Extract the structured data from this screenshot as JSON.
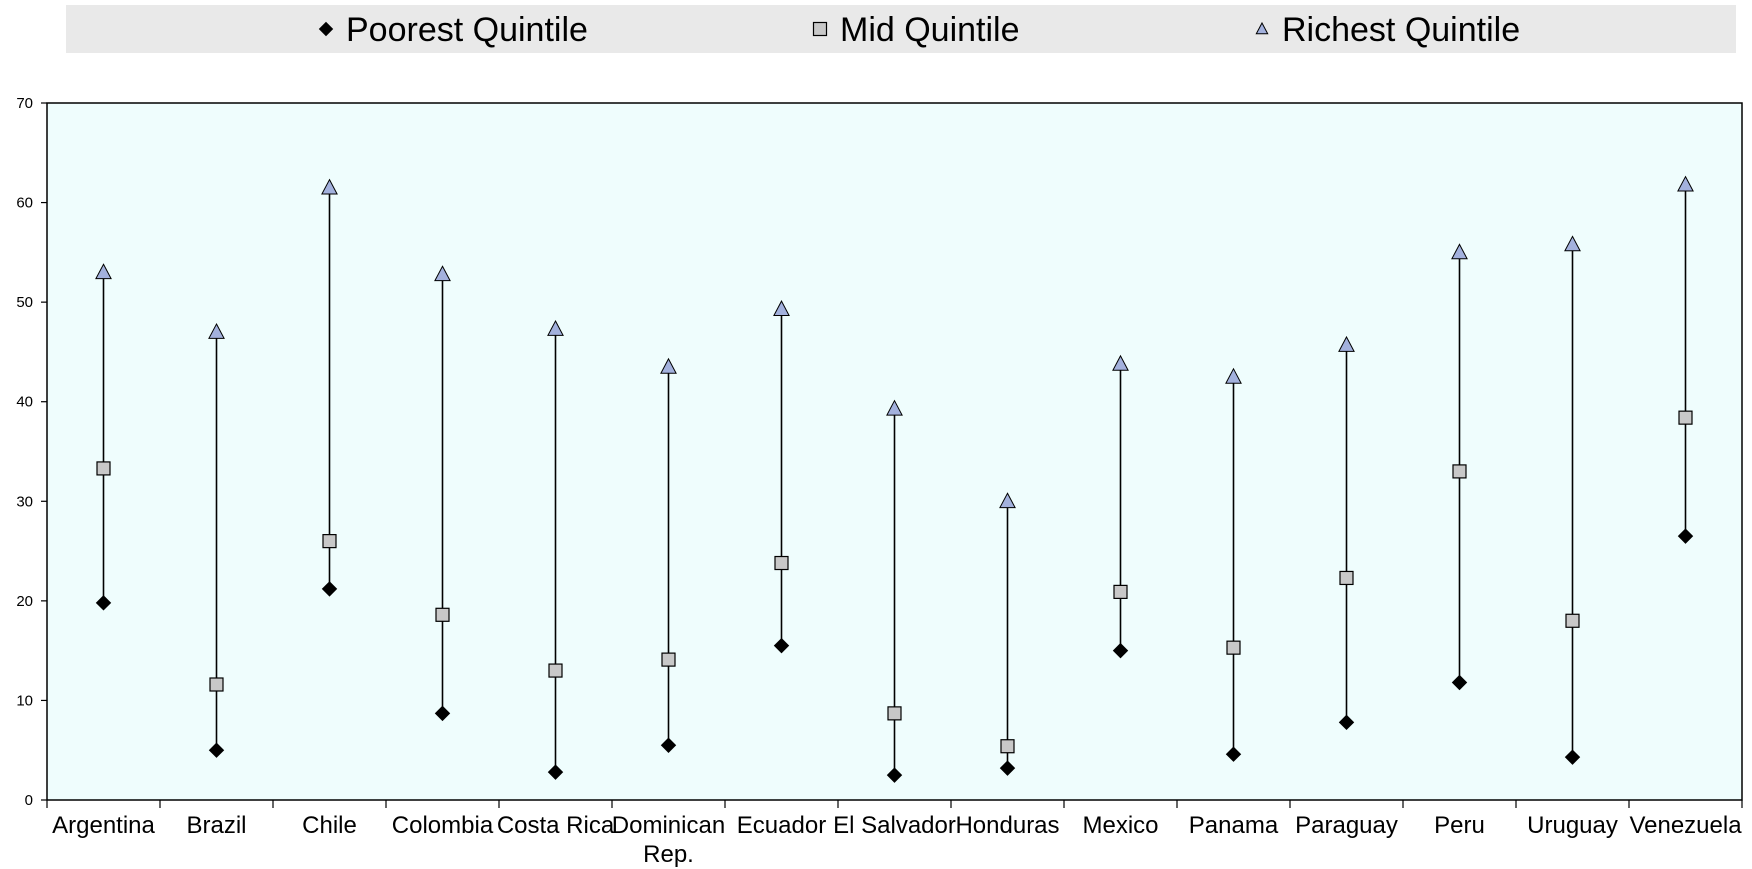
{
  "chart_data": {
    "type": "scatter",
    "title": "",
    "xlabel": "",
    "ylabel": "",
    "ylim": [
      0,
      70
    ],
    "yticks": [
      0,
      10,
      20,
      30,
      40,
      50,
      60,
      70
    ],
    "grid": false,
    "legend_position": "top",
    "categories": [
      "Argentina",
      "Brazil",
      "Chile",
      "Colombia",
      "Costa Rica",
      "Dominican Rep.",
      "Ecuador",
      "El Salvador",
      "Honduras",
      "Mexico",
      "Panama",
      "Paraguay",
      "Peru",
      "Uruguay",
      "Venezuela"
    ],
    "series": [
      {
        "name": "Poorest Quintile",
        "marker": "diamond",
        "color": "#000000",
        "values": [
          19.8,
          5.0,
          21.2,
          8.7,
          2.8,
          5.5,
          15.5,
          2.5,
          3.2,
          15.0,
          4.6,
          7.8,
          11.8,
          4.3,
          26.5
        ]
      },
      {
        "name": "Mid Quintile",
        "marker": "square",
        "color": "#c8c8c8",
        "values": [
          33.3,
          11.6,
          26.0,
          18.6,
          13.0,
          14.1,
          23.8,
          8.7,
          5.4,
          20.9,
          15.3,
          22.3,
          33.0,
          18.0,
          38.4
        ]
      },
      {
        "name": "Richest Quintile",
        "marker": "triangle",
        "color": "#a3b1dd",
        "values": [
          53.0,
          47.0,
          61.5,
          52.8,
          47.3,
          43.5,
          49.3,
          39.3,
          30.0,
          43.8,
          42.5,
          45.7,
          55.0,
          55.8,
          61.8
        ]
      }
    ],
    "colors": {
      "plot_background": "#effdfd",
      "legend_background": "#e9e9e9",
      "axis": "#000000"
    }
  }
}
